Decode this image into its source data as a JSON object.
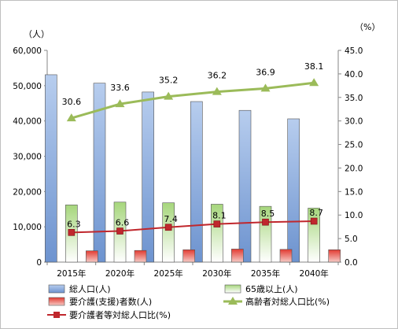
{
  "chart_data": {
    "type": "bar+line",
    "categories": [
      "2015年",
      "2020年",
      "2025年",
      "2030年",
      "2035年",
      "2040年"
    ],
    "left_axis": {
      "unit": "（人）",
      "min": 0,
      "max": 60000,
      "step": 10000,
      "tick_labels": [
        "0",
        "10,000",
        "20,000",
        "30,000",
        "40,000",
        "50,000",
        "60,000"
      ]
    },
    "right_axis": {
      "unit": "（%）",
      "min": 0,
      "max": 45,
      "step": 5,
      "tick_labels": [
        "0.0",
        "5.0",
        "10.0",
        "15.0",
        "20.0",
        "25.0",
        "30.0",
        "35.0",
        "40.0",
        "45.0"
      ]
    },
    "series": [
      {
        "name": "総人口(人)",
        "kind": "bar",
        "axis": "left",
        "color": "#8eb4e3",
        "values": [
          53100,
          50700,
          48200,
          45500,
          43000,
          40600
        ]
      },
      {
        "name": "65歳以上(人)",
        "kind": "bar",
        "axis": "left",
        "color": "#8dc55a",
        "values": [
          16200,
          17000,
          16800,
          16400,
          15800,
          15300
        ]
      },
      {
        "name": "要介護(支援)者数(人)",
        "kind": "bar",
        "axis": "left",
        "color": "#e0312b",
        "values": [
          3200,
          3300,
          3500,
          3700,
          3600,
          3500
        ]
      },
      {
        "name": "高齢者対総人口比(%)",
        "kind": "line",
        "axis": "right",
        "color": "#9bbb59",
        "marker": "triangle",
        "values": [
          30.6,
          33.6,
          35.2,
          36.2,
          36.9,
          38.1
        ],
        "labels": [
          "30.6",
          "33.6",
          "35.2",
          "36.2",
          "36.9",
          "38.1"
        ]
      },
      {
        "name": "要介護者等対総人口比(%)",
        "kind": "line",
        "axis": "right",
        "color": "#c0272d",
        "marker": "square",
        "values": [
          6.3,
          6.6,
          7.4,
          8.1,
          8.5,
          8.7
        ],
        "labels": [
          "6.3",
          "6.6",
          "7.4",
          "8.1",
          "8.5",
          "8.7"
        ]
      }
    ],
    "legend_position": "bottom",
    "grid": false
  }
}
